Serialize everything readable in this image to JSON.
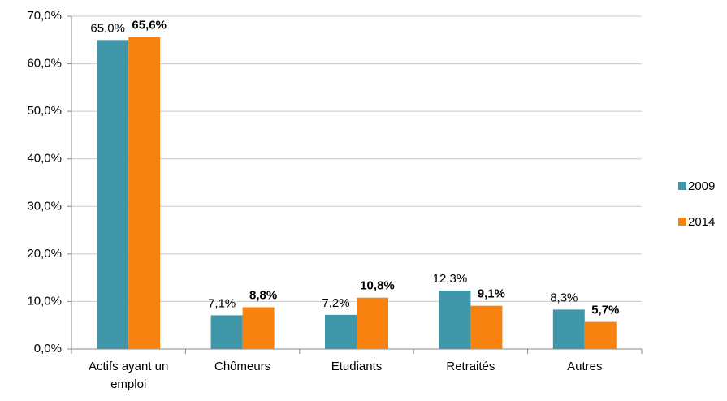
{
  "chart_data": {
    "type": "bar",
    "categories": [
      "Actifs ayant un emploi",
      "Chômeurs",
      "Etudiants",
      "Retraités",
      "Autres"
    ],
    "series": [
      {
        "name": "2009",
        "color": "#4097aa",
        "values": [
          65.0,
          7.1,
          7.2,
          12.3,
          8.3
        ],
        "value_labels": [
          "65,0%",
          "7,1%",
          "7,2%",
          "12,3%",
          "8,3%"
        ]
      },
      {
        "name": "2014",
        "color": "#f7820f",
        "values": [
          65.6,
          8.8,
          10.8,
          9.1,
          5.7
        ],
        "value_labels": [
          "65,6%",
          "8,8%",
          "10,8%",
          "9,1%",
          "5,7%"
        ]
      }
    ],
    "ylim": [
      0,
      70
    ],
    "yticks": [
      {
        "value": 0,
        "label": "0,0%"
      },
      {
        "value": 10,
        "label": "10,0%"
      },
      {
        "value": 20,
        "label": "20,0%"
      },
      {
        "value": 30,
        "label": "30,0%"
      },
      {
        "value": 40,
        "label": "40,0%"
      },
      {
        "value": 50,
        "label": "50,0%"
      },
      {
        "value": 60,
        "label": "60,0%"
      },
      {
        "value": 70,
        "label": "70,0%"
      }
    ],
    "grid": true,
    "legend": "right"
  }
}
